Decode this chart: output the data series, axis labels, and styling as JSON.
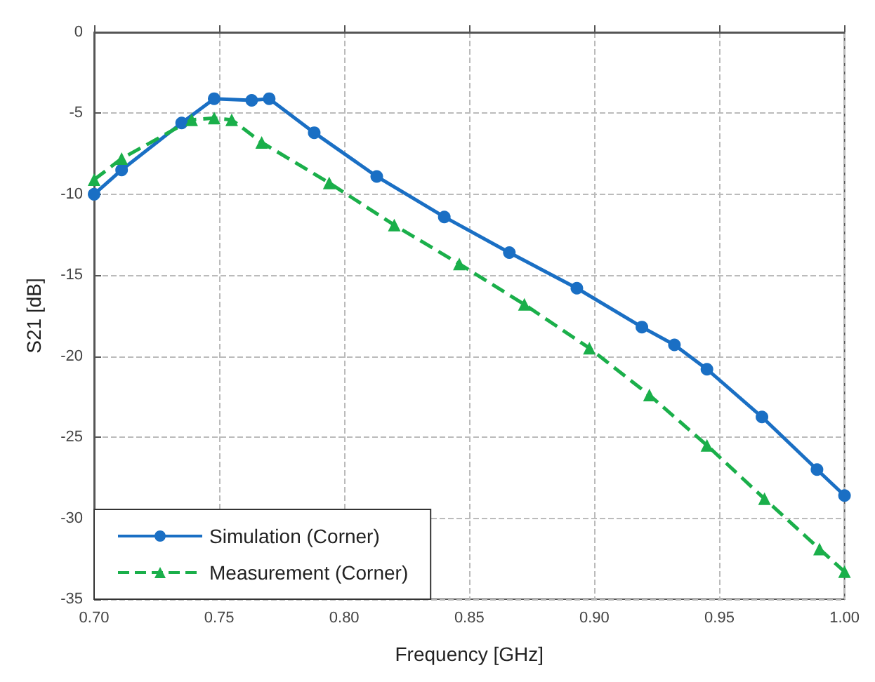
{
  "chart_data": {
    "type": "line",
    "xlabel": "Frequency [GHz]",
    "ylabel": "S21 [dB]",
    "xlim": [
      0.7,
      1.0
    ],
    "xticks": [
      {
        "value": 0.7,
        "label": "0.70"
      },
      {
        "value": 0.75,
        "label": "0.75"
      },
      {
        "value": 0.8,
        "label": "0.80"
      },
      {
        "value": 0.85,
        "label": "0.85"
      },
      {
        "value": 0.9,
        "label": "0.90"
      },
      {
        "value": 0.95,
        "label": "0.95"
      },
      {
        "value": 1.0,
        "label": "1.00"
      }
    ],
    "ylim": [
      -35,
      0
    ],
    "yticks": [
      -35,
      -30,
      -25,
      -20,
      -15,
      -10,
      -5,
      0
    ],
    "grid": true,
    "legend": "bottom left",
    "series": [
      {
        "name": "Simulation (Corner)",
        "color": "#1a6fc4",
        "marker": "circle",
        "line_style": "solid",
        "x": [
          0.7,
          0.711,
          0.735,
          0.748,
          0.763,
          0.77,
          0.788,
          0.813,
          0.84,
          0.866,
          0.893,
          0.919,
          0.932,
          0.945,
          0.967,
          0.989,
          1.0
        ],
        "values": [
          -10.0,
          -8.5,
          -5.6,
          -4.1,
          -4.2,
          -4.1,
          -6.2,
          -8.9,
          -11.4,
          -13.6,
          -15.8,
          -18.2,
          -19.3,
          -20.8,
          -23.75,
          -27.0,
          -28.6
        ]
      },
      {
        "name": "Measurement (Corner)",
        "color": "#1aaf4a",
        "marker": "triangle",
        "line_style": "dashed",
        "x": [
          0.7,
          0.711,
          0.739,
          0.748,
          0.755,
          0.767,
          0.794,
          0.82,
          0.846,
          0.872,
          0.898,
          0.922,
          0.945,
          0.968,
          0.99,
          1.0
        ],
        "values": [
          -9.1,
          -7.8,
          -5.4,
          -5.3,
          -5.4,
          -6.8,
          -9.3,
          -11.9,
          -14.3,
          -16.8,
          -19.5,
          -22.4,
          -25.5,
          -28.8,
          -31.9,
          -33.3
        ]
      }
    ]
  }
}
